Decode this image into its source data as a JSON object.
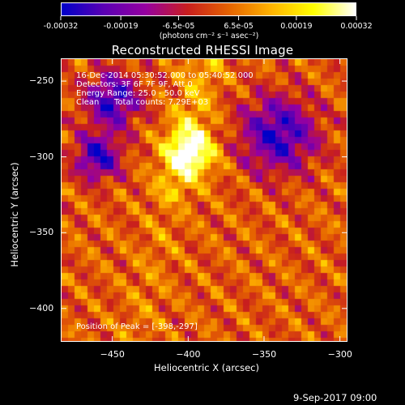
{
  "colorbar": {
    "tick_labels": [
      "-0.00032",
      "-0.00019",
      "-6.5e-05",
      "6.5e-05",
      "0.00019",
      "0.00032"
    ],
    "tick_values": [
      -0.00032,
      -0.00019,
      -6.5e-05,
      6.5e-05,
      0.00019,
      0.00032
    ],
    "range": [
      -0.00032,
      0.00032
    ],
    "units_label": "(photons cm⁻² s⁻¹ asec⁻²)",
    "colors": [
      "#0000c8",
      "#5a00b4",
      "#9600a0",
      "#c81e1e",
      "#e66400",
      "#ffb400",
      "#ffff00",
      "#ffffff"
    ]
  },
  "chart_data": {
    "type": "heatmap",
    "title": "Reconstructed RHESSI Image",
    "xlabel": "Heliocentric X (arcsec)",
    "ylabel": "Heliocentric Y (arcsec)",
    "xlim": [
      -484,
      -295
    ],
    "ylim": [
      -422,
      -235
    ],
    "x_ticks": [
      -450,
      -400,
      -350,
      -300
    ],
    "y_ticks": [
      -250,
      -300,
      -350,
      -400
    ],
    "peak_position": [
      -398,
      -297
    ],
    "value_range": [
      -0.00032,
      0.00032
    ],
    "negative_regions": [
      {
        "center": [
          -450,
          -262
        ],
        "radius": 18
      },
      {
        "center": [
          -340,
          -285
        ],
        "radius": 25
      },
      {
        "center": [
          -460,
          -300
        ],
        "radius": 15
      }
    ],
    "annotations": {
      "time_range": "16-Dec-2014 05:30:52.000 to 05:40:52.000",
      "detectors": "Detectors: 3F 6F 7F 9F, Att 0",
      "energy_range": "Energy Range: 25.0 - 50.0 keV",
      "algorithm": "Clean",
      "total_counts": "Total counts: 7.29E+03",
      "peak_label": "Position of Peak = [-398,-297]"
    }
  },
  "footer": {
    "date": "9-Sep-2017 09:00"
  }
}
